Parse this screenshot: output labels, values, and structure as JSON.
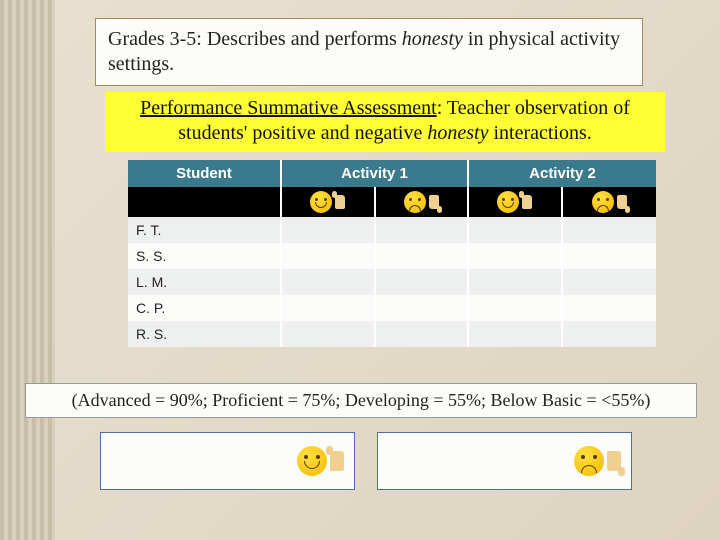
{
  "title": {
    "prefix": "Grades 3-5: Describes and performs ",
    "italic": "honesty",
    "suffix": " in physical activity settings."
  },
  "assessment": {
    "underlined": "Performance Summative Assessment",
    "mid": ": Teacher observation of students' positive and negative ",
    "italic": "honesty",
    "suffix": " interactions."
  },
  "table": {
    "headers": {
      "student": "Student",
      "activity1": "Activity 1",
      "activity2": "Activity 2"
    },
    "header_bg": "#3b7a8c",
    "header_color": "#ffffff",
    "icon_row_bg": "#000000",
    "row_alt_bg_odd": "#eef0f0",
    "row_alt_bg_even": "#fcfcfa",
    "students": [
      "F. T.",
      "S. S.",
      "L. M.",
      "C. P.",
      "R. S."
    ],
    "icons": {
      "positive": "smile-thumbs-up",
      "negative": "frown-thumbs-down"
    }
  },
  "scale": "(Advanced = 90%; Proficient = 75%; Developing = 55%; Below Basic = <55%)",
  "bottom": {
    "box1_icon": "smile-thumbs-up",
    "box2_icon": "frown-thumbs-down"
  },
  "colors": {
    "page_bg_start": "#e8e0d0",
    "page_bg_end": "#ddd4c0",
    "title_border": "#a08c5c",
    "assess_bg": "#ffff33",
    "bottom_border": "#4d6fa8"
  }
}
